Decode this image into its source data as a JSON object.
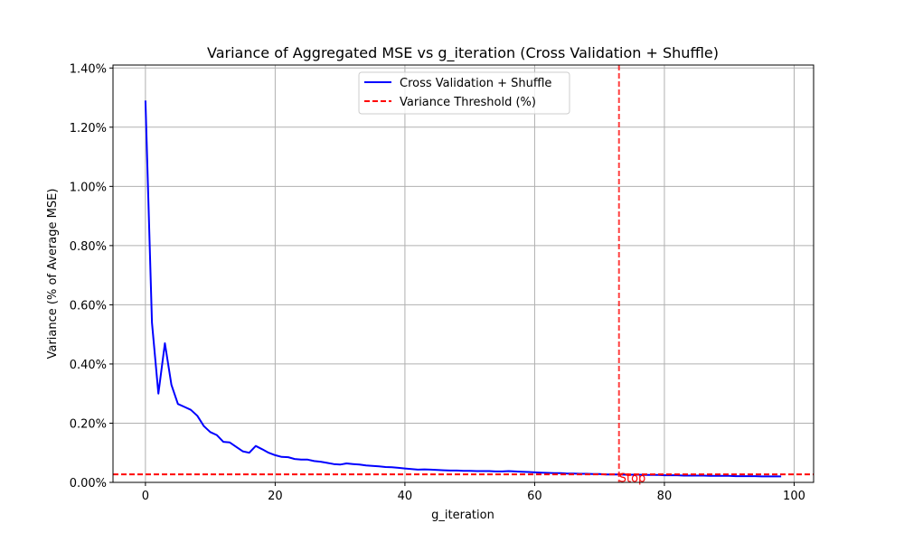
{
  "chart_data": {
    "type": "line",
    "title": "Variance of Aggregated MSE vs g_iteration (Cross Validation + Shuffle)",
    "xlabel": "g_iteration",
    "ylabel": "Variance (% of Average MSE)",
    "xlim": [
      -5,
      103
    ],
    "ylim": [
      0,
      1.41
    ],
    "xticks": [
      0,
      20,
      40,
      60,
      80,
      100
    ],
    "xtick_labels": [
      "0",
      "20",
      "40",
      "60",
      "80",
      "100"
    ],
    "yticks": [
      0,
      0.2,
      0.4,
      0.6,
      0.8,
      1.0,
      1.2,
      1.4
    ],
    "ytick_labels": [
      "0.00%",
      "0.20%",
      "0.40%",
      "0.60%",
      "0.80%",
      "1.00%",
      "1.20%",
      "1.40%"
    ],
    "grid": true,
    "legend_position": "top-center",
    "series": [
      {
        "name": "Cross Validation + Shuffle",
        "color": "#0000ff",
        "style": "solid",
        "x": [
          0,
          1,
          2,
          3,
          4,
          5,
          6,
          7,
          8,
          9,
          10,
          11,
          12,
          13,
          14,
          15,
          16,
          17,
          18,
          19,
          20,
          21,
          22,
          23,
          24,
          25,
          26,
          27,
          28,
          29,
          30,
          31,
          32,
          33,
          34,
          35,
          36,
          37,
          38,
          39,
          40,
          41,
          42,
          43,
          44,
          45,
          46,
          47,
          48,
          49,
          50,
          51,
          52,
          53,
          54,
          55,
          56,
          57,
          58,
          59,
          60,
          61,
          62,
          63,
          64,
          65,
          66,
          67,
          68,
          69,
          70,
          71,
          72,
          73,
          74,
          75,
          76,
          77,
          78,
          79,
          80,
          81,
          82,
          83,
          84,
          85,
          86,
          87,
          88,
          89,
          90,
          91,
          92,
          93,
          94,
          95,
          96,
          97,
          98
        ],
        "y": [
          1.29,
          0.54,
          0.3,
          0.47,
          0.33,
          0.265,
          0.255,
          0.245,
          0.225,
          0.19,
          0.17,
          0.16,
          0.137,
          0.135,
          0.12,
          0.105,
          0.1,
          0.123,
          0.112,
          0.1,
          0.092,
          0.086,
          0.085,
          0.079,
          0.077,
          0.077,
          0.072,
          0.07,
          0.066,
          0.062,
          0.06,
          0.064,
          0.062,
          0.06,
          0.057,
          0.056,
          0.054,
          0.052,
          0.051,
          0.049,
          0.047,
          0.045,
          0.043,
          0.044,
          0.043,
          0.042,
          0.041,
          0.04,
          0.04,
          0.039,
          0.039,
          0.038,
          0.038,
          0.038,
          0.037,
          0.037,
          0.038,
          0.037,
          0.036,
          0.035,
          0.034,
          0.033,
          0.032,
          0.031,
          0.031,
          0.03,
          0.03,
          0.029,
          0.029,
          0.028,
          0.028,
          0.027,
          0.027,
          0.027,
          0.026,
          0.026,
          0.026,
          0.025,
          0.025,
          0.025,
          0.024,
          0.024,
          0.024,
          0.023,
          0.023,
          0.023,
          0.023,
          0.022,
          0.022,
          0.022,
          0.022,
          0.021,
          0.021,
          0.021,
          0.021,
          0.02,
          0.02,
          0.02,
          0.02
        ]
      },
      {
        "name": "Variance Threshold (%)",
        "color": "#ff0000",
        "style": "dashed",
        "orientation": "horizontal",
        "value": 0.027
      }
    ],
    "annotations": [
      {
        "type": "vline",
        "x": 73,
        "color": "#ff0000",
        "style": "dashed",
        "opacity": 0.75
      },
      {
        "type": "text",
        "text": "Stop",
        "x": 73,
        "y": 0.002,
        "color": "#ff0000"
      }
    ]
  }
}
